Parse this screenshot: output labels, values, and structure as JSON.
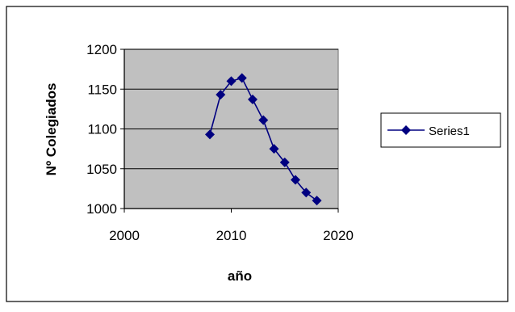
{
  "chart_data": {
    "type": "scatter",
    "title": "",
    "xlabel": "año",
    "ylabel": "Nº Colegiados",
    "xlim": [
      2000,
      2020
    ],
    "ylim": [
      1000,
      1200
    ],
    "xticks": [
      2000,
      2010,
      2020
    ],
    "yticks": [
      1000,
      1050,
      1100,
      1150,
      1200
    ],
    "grid": "horizontal",
    "plot_background": "#c0c0c0",
    "legend": "right",
    "series": [
      {
        "name": "Series1",
        "color": "#000080",
        "marker": "diamond",
        "line": true,
        "x": [
          2008,
          2009,
          2010,
          2011,
          2012,
          2013,
          2014,
          2015,
          2016,
          2017,
          2018
        ],
        "y": [
          1093,
          1143,
          1160,
          1164,
          1137,
          1111,
          1075,
          1058,
          1036,
          1020,
          1010
        ]
      }
    ]
  }
}
